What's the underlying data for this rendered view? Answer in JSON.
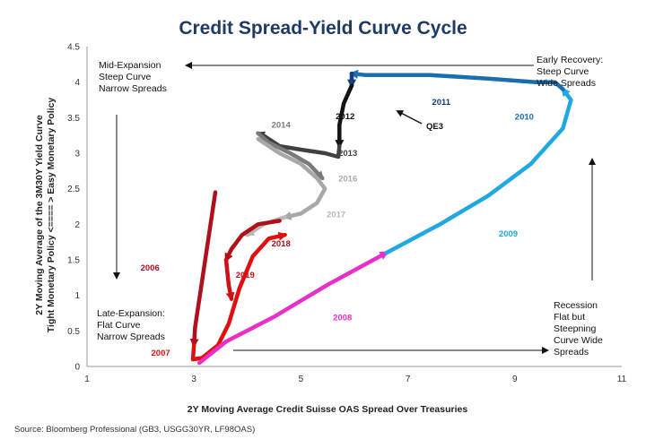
{
  "chart_data": {
    "type": "line",
    "title": "Credit Spread-Yield Curve Cycle",
    "xlabel": "2Y Moving Average Credit Suisse OAS Spread Over Treasuries",
    "ylabel_line1": "2Y Moving Average of the 3M30Y Yield Curve",
    "ylabel_line2": "Tight Monetary Policy <==== > Easy Monetary Policy",
    "xlim": [
      1,
      11
    ],
    "ylim": [
      0,
      4.5
    ],
    "x_ticks": [
      "1",
      "3",
      "5",
      "7",
      "9",
      "11"
    ],
    "y_ticks": [
      "0",
      "0.5",
      "1",
      "1.5",
      "2",
      "2.5",
      "3",
      "3.5",
      "4",
      "4.5"
    ],
    "grid": false,
    "regions": {
      "mid_expansion": [
        "Mid-Expansion",
        "Steep Curve",
        "Narrow Spreads"
      ],
      "early_recovery": [
        "Early Recovery:",
        "Steep Curve",
        "Wide Spreads"
      ],
      "late_expansion": [
        "Late-Expansion:",
        "Flat Curve",
        "Narrow Spreads"
      ],
      "recession": [
        "Recession",
        "Flat but",
        "Steepning",
        "Curve  Wide",
        "Spreads"
      ]
    },
    "annotations": {
      "qe3": "QE3"
    },
    "series": [
      {
        "year": "2006",
        "color": "#b0101e",
        "label_pos": [
          2.0,
          1.35
        ],
        "points": [
          [
            3.4,
            2.45
          ],
          [
            3.25,
            1.7
          ],
          [
            3.12,
            1.05
          ],
          [
            3.02,
            0.55
          ],
          [
            3.0,
            0.3
          ]
        ]
      },
      {
        "year": "2007",
        "color": "#e01010",
        "label_pos": [
          2.2,
          0.15
        ],
        "points": [
          [
            3.0,
            0.3
          ],
          [
            2.98,
            0.1
          ],
          [
            3.15,
            0.12
          ],
          [
            3.45,
            0.3
          ],
          [
            3.65,
            0.6
          ],
          [
            3.85,
            1.1
          ],
          [
            4.1,
            1.55
          ],
          [
            4.4,
            1.8
          ],
          [
            4.7,
            1.85
          ]
        ]
      },
      {
        "year": "2008",
        "color": "#e830c8",
        "label_pos": [
          5.6,
          0.65
        ],
        "points": [
          [
            3.1,
            0.05
          ],
          [
            3.6,
            0.35
          ],
          [
            4.5,
            0.7
          ],
          [
            5.5,
            1.15
          ],
          [
            6.6,
            1.6
          ]
        ]
      },
      {
        "year": "2009",
        "color": "#20a8e0",
        "label_pos": [
          8.7,
          1.83
        ],
        "points": [
          [
            6.6,
            1.6
          ],
          [
            7.6,
            2.0
          ],
          [
            8.5,
            2.4
          ],
          [
            9.3,
            2.85
          ],
          [
            9.9,
            3.35
          ],
          [
            10.05,
            3.75
          ],
          [
            9.9,
            3.9
          ]
        ]
      },
      {
        "year": "2010",
        "color": "#1a6eb0",
        "label_pos": [
          9.0,
          3.47
        ],
        "points": [
          [
            9.9,
            3.9
          ],
          [
            9.75,
            4.0
          ],
          [
            9.4,
            4.0
          ],
          [
            8.5,
            4.05
          ],
          [
            7.4,
            4.1
          ],
          [
            6.2,
            4.1
          ],
          [
            5.95,
            4.12
          ]
        ]
      },
      {
        "year": "2011",
        "color": "#123e7c",
        "label_pos": [
          7.45,
          3.68
        ],
        "points": [
          [
            5.95,
            4.12
          ],
          [
            5.95,
            3.95
          ]
        ]
      },
      {
        "year": "2012",
        "color": "#141414",
        "label_pos": [
          5.65,
          3.48
        ],
        "points": [
          [
            5.95,
            3.95
          ],
          [
            5.8,
            3.7
          ],
          [
            5.72,
            3.4
          ],
          [
            5.72,
            3.1
          ]
        ]
      },
      {
        "year": "2013",
        "color": "#404040",
        "label_pos": [
          5.7,
          2.96
        ],
        "points": [
          [
            5.72,
            3.1
          ],
          [
            5.7,
            2.95
          ],
          [
            5.45,
            3.0
          ],
          [
            5.0,
            3.05
          ],
          [
            4.6,
            3.1
          ],
          [
            4.3,
            3.25
          ],
          [
            4.2,
            3.28
          ]
        ]
      },
      {
        "year": "2014",
        "color": "#7a7a7a",
        "label_pos": [
          4.45,
          3.36
        ],
        "points": [
          [
            4.2,
            3.28
          ],
          [
            4.4,
            3.15
          ],
          [
            4.8,
            3.0
          ],
          [
            5.15,
            2.85
          ],
          [
            5.4,
            2.65
          ]
        ]
      },
      {
        "year": "2016",
        "color": "#a8a8a8",
        "label_pos": [
          5.7,
          2.6
        ],
        "points": [
          [
            4.2,
            3.2
          ],
          [
            4.6,
            3.0
          ],
          [
            5.0,
            2.85
          ],
          [
            5.3,
            2.65
          ],
          [
            5.45,
            2.5
          ],
          [
            5.3,
            2.3
          ],
          [
            5.0,
            2.15
          ],
          [
            4.7,
            2.1
          ]
        ]
      },
      {
        "year": "2017",
        "color": "#b8b8b8",
        "label_pos": [
          5.48,
          2.1
        ],
        "points": [
          [
            4.7,
            2.1
          ],
          [
            4.3,
            2.0
          ],
          [
            4.0,
            1.85
          ]
        ]
      },
      {
        "year": "2018",
        "color": "#b01018",
        "label_pos": [
          4.45,
          1.69
        ],
        "points": [
          [
            4.6,
            2.05
          ],
          [
            4.2,
            2.0
          ],
          [
            3.9,
            1.85
          ],
          [
            3.7,
            1.65
          ],
          [
            3.6,
            1.5
          ]
        ]
      },
      {
        "year": "2019",
        "color": "#d01018",
        "label_pos": [
          3.78,
          1.25
        ],
        "points": [
          [
            3.6,
            1.5
          ],
          [
            3.65,
            1.15
          ],
          [
            3.7,
            0.95
          ]
        ]
      }
    ]
  }
}
